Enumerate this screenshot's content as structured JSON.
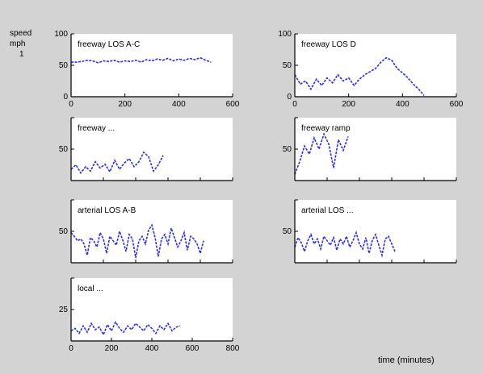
{
  "figure": {
    "ylabel": "speed\nmph\n1",
    "xlabel": "time (minutes)"
  },
  "colors": {
    "background": "#d3d3d3",
    "axes_bg": "#ffffff",
    "series": "#2b2bff",
    "axis": "#000000"
  },
  "chart_data": [
    {
      "type": "line",
      "title": "freeway LOS A-C",
      "xlim": [
        0,
        600
      ],
      "ylim": [
        0,
        100
      ],
      "xticks": [
        "0",
        "200",
        "400",
        "600"
      ],
      "yticks": [
        "0",
        "50",
        "100"
      ],
      "grid": false,
      "series": [
        {
          "x": [
            0,
            20,
            40,
            60,
            80,
            100,
            120,
            140,
            160,
            180,
            200,
            220,
            240,
            260,
            280,
            300,
            320,
            340,
            360,
            380,
            400,
            420,
            440,
            460,
            480,
            500,
            520
          ],
          "y": [
            55,
            55,
            56,
            58,
            57,
            54,
            57,
            56,
            58,
            55,
            57,
            56,
            58,
            55,
            59,
            57,
            60,
            58,
            61,
            57,
            60,
            58,
            61,
            59,
            62,
            58,
            55
          ]
        }
      ]
    },
    {
      "type": "line",
      "title": "freeway LOS D",
      "xlim": [
        0,
        600
      ],
      "ylim": [
        0,
        100
      ],
      "xticks": [
        "0",
        "200",
        "400",
        "600"
      ],
      "yticks": [
        "0",
        "50",
        "100"
      ],
      "grid": false,
      "series": [
        {
          "x": [
            0,
            20,
            40,
            60,
            80,
            100,
            120,
            140,
            160,
            180,
            200,
            220,
            240,
            260,
            280,
            300,
            320,
            340,
            360,
            380,
            400,
            420,
            440,
            460,
            480
          ],
          "y": [
            35,
            20,
            25,
            12,
            28,
            18,
            30,
            22,
            35,
            25,
            30,
            18,
            28,
            35,
            40,
            45,
            55,
            62,
            58,
            45,
            38,
            30,
            20,
            12,
            2
          ]
        }
      ]
    },
    {
      "type": "line",
      "title": "freeway ...",
      "xlim": [
        0,
        1
      ],
      "ylim": [
        0,
        100
      ],
      "xticks": [
        "",
        "",
        "",
        "",
        "",
        ""
      ],
      "yticks": [
        "",
        "50",
        ""
      ],
      "grid": false,
      "series": [
        {
          "x": [
            0,
            0.03,
            0.06,
            0.09,
            0.12,
            0.15,
            0.18,
            0.21,
            0.24,
            0.27,
            0.3,
            0.33,
            0.36,
            0.39,
            0.42,
            0.45,
            0.48,
            0.51,
            0.54,
            0.57
          ],
          "y": [
            18,
            25,
            12,
            22,
            15,
            30,
            20,
            26,
            14,
            32,
            18,
            28,
            35,
            22,
            30,
            45,
            38,
            15,
            25,
            40
          ]
        }
      ]
    },
    {
      "type": "line",
      "title": "freeway ramp",
      "xlim": [
        0,
        1
      ],
      "ylim": [
        0,
        100
      ],
      "xticks": [
        "",
        "",
        "",
        "",
        "",
        ""
      ],
      "yticks": [
        "",
        "50",
        ""
      ],
      "grid": false,
      "series": [
        {
          "x": [
            0,
            0.03,
            0.06,
            0.09,
            0.12,
            0.15,
            0.18,
            0.21,
            0.24,
            0.27,
            0.3,
            0.33
          ],
          "y": [
            10,
            30,
            55,
            42,
            68,
            50,
            74,
            58,
            20,
            65,
            48,
            70
          ]
        }
      ]
    },
    {
      "type": "line",
      "title": "arterial LOS A-B",
      "xlim": [
        0,
        1
      ],
      "ylim": [
        0,
        100
      ],
      "xticks": [
        "",
        "",
        "",
        "",
        "",
        ""
      ],
      "yticks": [
        "",
        "50",
        ""
      ],
      "grid": false,
      "series": [
        {
          "x": [
            0,
            0.02,
            0.04,
            0.06,
            0.08,
            0.1,
            0.12,
            0.14,
            0.16,
            0.18,
            0.2,
            0.22,
            0.24,
            0.26,
            0.28,
            0.3,
            0.32,
            0.34,
            0.36,
            0.38,
            0.4,
            0.42,
            0.44,
            0.46,
            0.48,
            0.5,
            0.52,
            0.54,
            0.56,
            0.58,
            0.6,
            0.62,
            0.64,
            0.66,
            0.68,
            0.7,
            0.72,
            0.74,
            0.76,
            0.78,
            0.8,
            0.82
          ],
          "y": [
            48,
            42,
            35,
            38,
            30,
            12,
            40,
            35,
            25,
            48,
            38,
            15,
            42,
            35,
            28,
            50,
            36,
            18,
            45,
            38,
            8,
            35,
            42,
            30,
            52,
            60,
            40,
            10,
            38,
            45,
            30,
            55,
            40,
            25,
            35,
            48,
            20,
            42,
            38,
            30,
            15,
            35
          ]
        }
      ]
    },
    {
      "type": "line",
      "title": "arterial LOS ...",
      "xlim": [
        0,
        1
      ],
      "ylim": [
        0,
        100
      ],
      "xticks": [
        "",
        "",
        "",
        "",
        "",
        ""
      ],
      "yticks": [
        "",
        "50",
        ""
      ],
      "grid": false,
      "series": [
        {
          "x": [
            0,
            0.02,
            0.04,
            0.06,
            0.08,
            0.1,
            0.12,
            0.14,
            0.16,
            0.18,
            0.2,
            0.22,
            0.24,
            0.26,
            0.28,
            0.3,
            0.32,
            0.34,
            0.36,
            0.38,
            0.4,
            0.42,
            0.44,
            0.46,
            0.48,
            0.5,
            0.52,
            0.54,
            0.56,
            0.58,
            0.6,
            0.62
          ],
          "y": [
            25,
            40,
            32,
            18,
            35,
            45,
            30,
            38,
            22,
            42,
            35,
            28,
            40,
            20,
            38,
            30,
            42,
            25,
            35,
            48,
            30,
            22,
            40,
            15,
            36,
            45,
            28,
            12,
            38,
            42,
            30,
            18
          ]
        }
      ]
    },
    {
      "type": "line",
      "title": "local ...",
      "xlim": [
        0,
        800
      ],
      "ylim": [
        0,
        50
      ],
      "xticks": [
        "0",
        "200",
        "400",
        "600",
        "800"
      ],
      "yticks": [
        "",
        "25",
        ""
      ],
      "grid": false,
      "series": [
        {
          "x": [
            0,
            20,
            40,
            60,
            80,
            100,
            120,
            140,
            160,
            180,
            200,
            220,
            240,
            260,
            280,
            300,
            320,
            340,
            360,
            380,
            400,
            420,
            440,
            460,
            480,
            500,
            520,
            540
          ],
          "y": [
            8,
            10,
            6,
            12,
            7,
            14,
            9,
            11,
            5,
            13,
            8,
            15,
            10,
            7,
            12,
            9,
            14,
            11,
            8,
            13,
            10,
            6,
            12,
            9,
            14,
            8,
            11,
            12
          ]
        }
      ]
    }
  ]
}
